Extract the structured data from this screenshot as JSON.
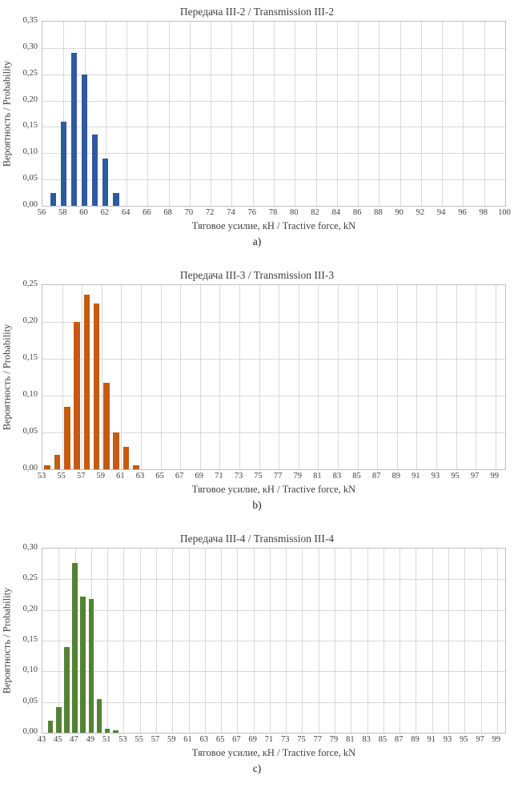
{
  "page": {
    "background": "#ffffff"
  },
  "chart_data": [
    {
      "type": "bar",
      "title": "Передача III-2 / Transmission III-2",
      "sub_label": "a)",
      "ylabel": "Вероятность / Probability",
      "xlabel": "Тяговое усилие, кН / Tractive force, kN",
      "color": "#2e5b9e",
      "grid": true,
      "legend": "none",
      "xlim": [
        56,
        100
      ],
      "xtick_step": 2,
      "ylim": [
        0,
        0.35
      ],
      "ytick_step": 0.05,
      "y_decimals": 2,
      "decimal_separator": ",",
      "bar_width_frac": 0.55,
      "x": [
        57,
        58,
        59,
        60,
        61,
        62,
        63
      ],
      "values": [
        0.025,
        0.16,
        0.29,
        0.25,
        0.135,
        0.09,
        0.025
      ]
    },
    {
      "type": "bar",
      "title": "Передача III-3 / Transmission III-3",
      "sub_label": "b)",
      "ylabel": "Вероятность / Probability",
      "xlabel": "Тяговое усилие, кН / Tractive force, kN",
      "color": "#c55a11",
      "grid": true,
      "legend": "none",
      "xlim": [
        53,
        100
      ],
      "xtick_step": 2,
      "ylim": [
        0,
        0.25
      ],
      "ytick_step": 0.05,
      "y_decimals": 2,
      "decimal_separator": ",",
      "bar_width_frac": 0.62,
      "x": [
        53.5,
        54.5,
        55.5,
        56.5,
        57.5,
        58.5,
        59.5,
        60.5,
        61.5,
        62.5
      ],
      "values": [
        0.005,
        0.02,
        0.085,
        0.2,
        0.237,
        0.225,
        0.117,
        0.05,
        0.03,
        0.005
      ]
    },
    {
      "type": "bar",
      "title": "Передача III-4 / Transmission III-4",
      "sub_label": "c)",
      "ylabel": "Вероятность / Probability",
      "xlabel": "Тяговое усилие, кН / Tractive force, kN",
      "color": "#548235",
      "grid": true,
      "legend": "none",
      "xlim": [
        43,
        100
      ],
      "xtick_step": 2,
      "ylim": [
        0,
        0.3
      ],
      "ytick_step": 0.05,
      "y_decimals": 2,
      "decimal_separator": ",",
      "bar_width_frac": 0.65,
      "x": [
        44,
        45,
        46,
        47,
        48,
        49,
        50,
        51,
        52
      ],
      "values": [
        0.02,
        0.042,
        0.14,
        0.277,
        0.222,
        0.218,
        0.055,
        0.007,
        0.004
      ]
    }
  ]
}
